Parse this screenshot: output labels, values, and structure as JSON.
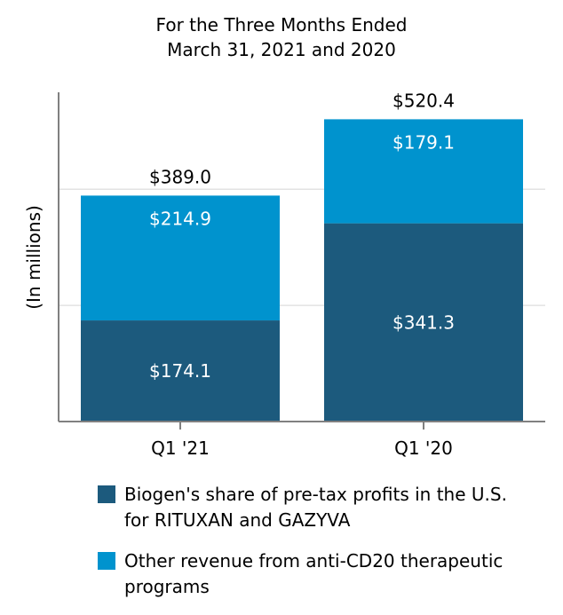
{
  "chart_data": {
    "type": "bar",
    "stacked": true,
    "title_lines": [
      "For the Three Months Ended",
      "March 31, 2021 and 2020"
    ],
    "ylabel": "(In millions)",
    "ylim": [
      0,
      600
    ],
    "gridlines_at": [
      200,
      400
    ],
    "categories": [
      "Q1 '21",
      "Q1 '20"
    ],
    "series": [
      {
        "name": "Biogen's share of pre-tax profits in the U.S. for RITUXAN and GAZYVA",
        "legend_lines": [
          "Biogen's share of pre-tax profits in the U.S.",
          "for RITUXAN and GAZYVA"
        ],
        "color": "#1c5a7d",
        "values": [
          174.1,
          341.3
        ],
        "labels": [
          "$174.1",
          "$341.3"
        ]
      },
      {
        "name": "Other revenue from anti-CD20 therapeutic programs",
        "legend_lines": [
          "Other revenue from anti-CD20 therapeutic",
          "programs"
        ],
        "color": "#0093ce",
        "values": [
          214.9,
          179.1
        ],
        "labels": [
          "$214.9",
          "$179.1"
        ]
      }
    ],
    "totals": [
      389.0,
      520.4
    ],
    "total_labels": [
      "$389.0",
      "$520.4"
    ]
  }
}
